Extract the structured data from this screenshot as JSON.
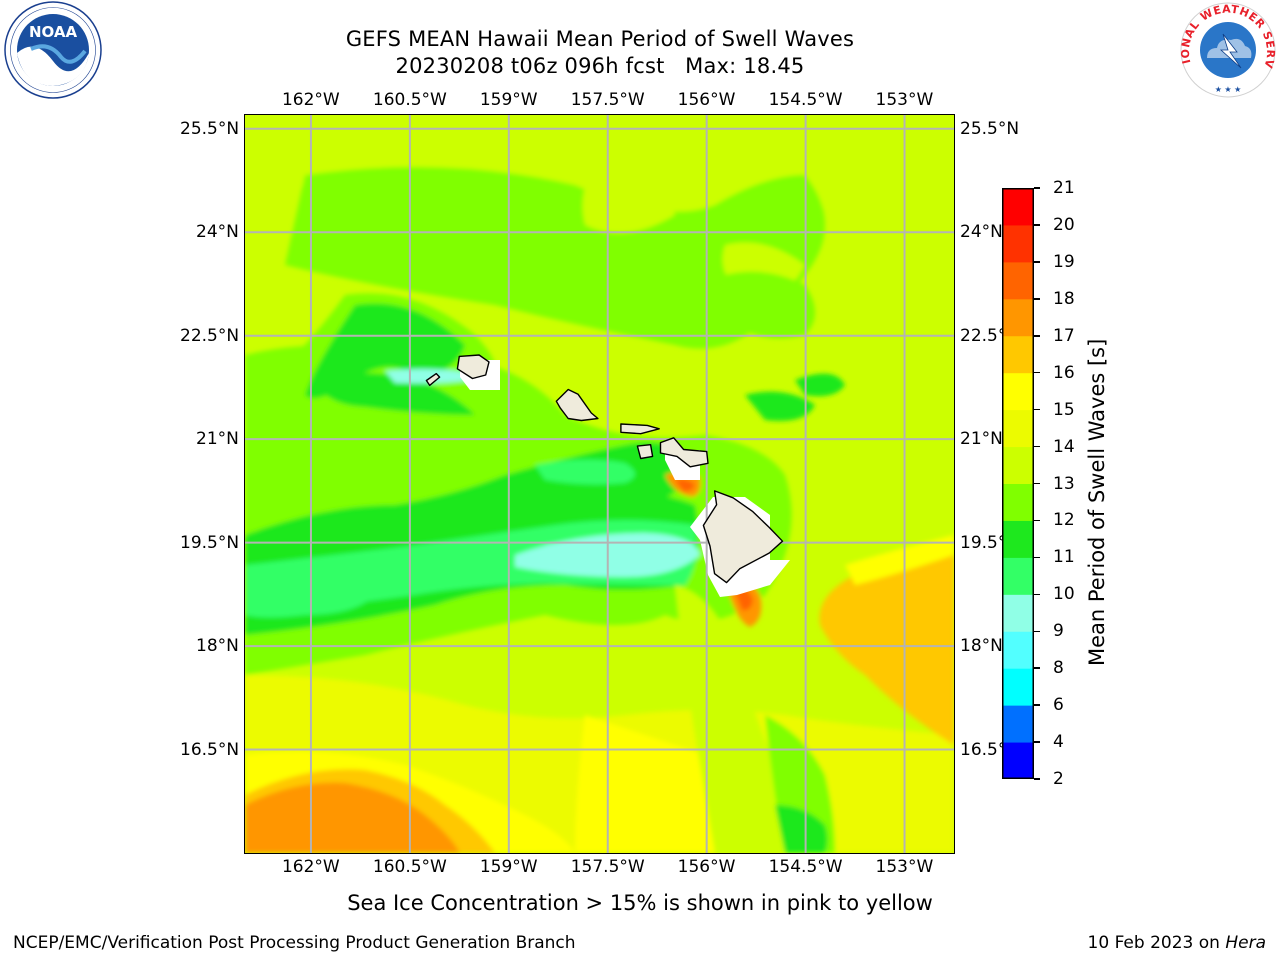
{
  "header": {
    "title_line1": "GEFS MEAN Hawaii Mean Period of Swell Waves",
    "title_line2": "20230208 t06z 096h fcst   Max: 18.45"
  },
  "logos": {
    "left": {
      "icon": "noaa-logo",
      "text": "NOAA",
      "ring_text": "NATIONAL OCEANIC AND ATMOSPHERIC ADMINISTRATION · U.S. DEPARTMENT OF COMMERCE"
    },
    "right": {
      "icon": "nws-logo",
      "ring_text": "NATIONAL WEATHER SERVICE"
    }
  },
  "map": {
    "lon_ticks": [
      "162°W",
      "160.5°W",
      "159°W",
      "157.5°W",
      "156°W",
      "154.5°W",
      "153°W"
    ],
    "lat_ticks": [
      "25.5°N",
      "24°N",
      "22.5°N",
      "21°N",
      "19.5°N",
      "18°N",
      "16.5°N"
    ],
    "lon_range": [
      -163.0,
      -152.25
    ],
    "lat_range": [
      15.0,
      25.7
    ],
    "land_color": "#efebdc",
    "grid_color": "#b4b4b4",
    "islands": [
      {
        "name": "Niihau",
        "outline": [
          [
            -160.25,
            21.85
          ],
          [
            -160.1,
            21.95
          ],
          [
            -160.05,
            21.9
          ],
          [
            -160.2,
            21.78
          ]
        ]
      },
      {
        "name": "Kauai",
        "outline": [
          [
            -159.75,
            22.2
          ],
          [
            -159.45,
            22.22
          ],
          [
            -159.3,
            22.12
          ],
          [
            -159.35,
            21.93
          ],
          [
            -159.55,
            21.88
          ],
          [
            -159.78,
            22.02
          ]
        ]
      },
      {
        "name": "Oahu",
        "outline": [
          [
            -158.28,
            21.55
          ],
          [
            -158.1,
            21.72
          ],
          [
            -157.95,
            21.65
          ],
          [
            -157.75,
            21.38
          ],
          [
            -157.65,
            21.3
          ],
          [
            -157.9,
            21.27
          ],
          [
            -158.1,
            21.3
          ],
          [
            -158.22,
            21.45
          ]
        ]
      },
      {
        "name": "Molokai",
        "outline": [
          [
            -157.3,
            21.22
          ],
          [
            -156.9,
            21.2
          ],
          [
            -156.72,
            21.15
          ],
          [
            -157.0,
            21.08
          ],
          [
            -157.3,
            21.1
          ]
        ]
      },
      {
        "name": "Lanai",
        "outline": [
          [
            -157.05,
            20.9
          ],
          [
            -156.85,
            20.92
          ],
          [
            -156.82,
            20.75
          ],
          [
            -157.0,
            20.72
          ]
        ]
      },
      {
        "name": "Maui",
        "outline": [
          [
            -156.7,
            20.95
          ],
          [
            -156.5,
            21.02
          ],
          [
            -156.35,
            20.85
          ],
          [
            -156.0,
            20.82
          ],
          [
            -155.98,
            20.65
          ],
          [
            -156.25,
            20.6
          ],
          [
            -156.45,
            20.75
          ],
          [
            -156.7,
            20.8
          ]
        ]
      },
      {
        "name": "Hawaii",
        "outline": [
          [
            -155.88,
            20.25
          ],
          [
            -155.6,
            20.15
          ],
          [
            -155.3,
            19.95
          ],
          [
            -155.05,
            19.72
          ],
          [
            -154.85,
            19.52
          ],
          [
            -155.05,
            19.35
          ],
          [
            -155.5,
            19.12
          ],
          [
            -155.7,
            18.92
          ],
          [
            -155.88,
            19.05
          ],
          [
            -155.95,
            19.45
          ],
          [
            -156.05,
            19.75
          ],
          [
            -155.85,
            20.05
          ]
        ]
      }
    ]
  },
  "colorbar": {
    "label": "Mean Period of Swell Waves [s]",
    "ticks": [
      "2",
      "4",
      "6",
      "8",
      "9",
      "10",
      "11",
      "12",
      "13",
      "14",
      "15",
      "16",
      "17",
      "18",
      "19",
      "20",
      "21"
    ],
    "colors": [
      "#0000ff",
      "#0070ff",
      "#00ffff",
      "#52ffff",
      "#90ffe6",
      "#33ff66",
      "#1ee81e",
      "#80ff00",
      "#ccff00",
      "#ecfb00",
      "#ffff00",
      "#ffc800",
      "#ff9600",
      "#ff6400",
      "#ff3200",
      "#ff0000"
    ]
  },
  "caption": "Sea Ice Concentration > 15% is shown in pink to yellow",
  "footer": {
    "left": "NCEP/EMC/Verification Post Processing Product Generation Branch",
    "right_prefix": "10 Feb 2023 on ",
    "right_host": "Hera"
  }
}
